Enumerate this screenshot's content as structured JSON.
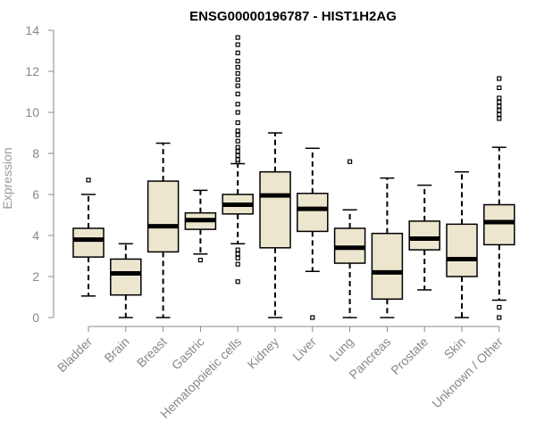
{
  "chart_data": {
    "type": "boxplot",
    "title": "ENSG00000196787 - HIST1H2AG",
    "xlabel": "",
    "ylabel": "Expression",
    "ylim": [
      0,
      14
    ],
    "yticks": [
      0,
      2,
      4,
      6,
      8,
      10,
      12,
      14
    ],
    "grid": false,
    "colors": {
      "box_fill": "#ede6cf",
      "box_stroke": "#000000",
      "axis": "#888888",
      "title": "#000000"
    },
    "categories": [
      "Bladder",
      "Brain",
      "Breast",
      "Gastric",
      "Hematopoietic cells",
      "Kidney",
      "Liver",
      "Lung",
      "Pancreas",
      "Prostate",
      "Skin",
      "Unknown / Other"
    ],
    "boxes": [
      {
        "category": "Bladder",
        "min": 1.05,
        "q1": 2.95,
        "median": 3.8,
        "q3": 4.35,
        "max": 6.0,
        "outliers": [
          6.7
        ]
      },
      {
        "category": "Brain",
        "min": 0.0,
        "q1": 1.1,
        "median": 2.15,
        "q3": 2.85,
        "max": 3.6,
        "outliers": []
      },
      {
        "category": "Breast",
        "min": 0.0,
        "q1": 3.2,
        "median": 4.45,
        "q3": 6.65,
        "max": 8.5,
        "outliers": []
      },
      {
        "category": "Gastric",
        "min": 3.1,
        "q1": 4.3,
        "median": 4.75,
        "q3": 5.1,
        "max": 6.2,
        "outliers": [
          2.8
        ]
      },
      {
        "category": "Hematopoietic cells",
        "min": 3.6,
        "q1": 5.05,
        "median": 5.5,
        "q3": 6.0,
        "max": 7.5,
        "outliers": [
          1.75,
          2.6,
          2.9,
          3.1,
          3.3,
          7.6,
          7.7,
          7.9,
          8.1,
          8.3,
          8.6,
          8.9,
          9.1,
          9.5,
          10.0,
          10.4,
          10.9,
          11.3,
          11.6,
          11.9,
          12.2,
          12.5,
          12.9,
          13.3,
          13.65
        ]
      },
      {
        "category": "Kidney",
        "min": 0.0,
        "q1": 3.4,
        "median": 5.95,
        "q3": 7.1,
        "max": 9.0,
        "outliers": []
      },
      {
        "category": "Liver",
        "min": 2.25,
        "q1": 4.2,
        "median": 5.3,
        "q3": 6.05,
        "max": 8.25,
        "outliers": [
          0.0
        ]
      },
      {
        "category": "Lung",
        "min": 0.0,
        "q1": 2.65,
        "median": 3.4,
        "q3": 4.35,
        "max": 5.25,
        "outliers": [
          7.6
        ]
      },
      {
        "category": "Pancreas",
        "min": 0.0,
        "q1": 0.9,
        "median": 2.2,
        "q3": 4.1,
        "max": 6.8,
        "outliers": []
      },
      {
        "category": "Prostate",
        "min": 1.35,
        "q1": 3.3,
        "median": 3.85,
        "q3": 4.7,
        "max": 6.45,
        "outliers": []
      },
      {
        "category": "Skin",
        "min": 0.0,
        "q1": 2.0,
        "median": 2.85,
        "q3": 4.55,
        "max": 7.1,
        "outliers": []
      },
      {
        "category": "Unknown / Other",
        "min": 0.85,
        "q1": 3.55,
        "median": 4.65,
        "q3": 5.5,
        "max": 8.3,
        "outliers": [
          0.0,
          0.5,
          9.7,
          9.9,
          10.1,
          10.3,
          10.5,
          10.7,
          11.2,
          11.65
        ]
      }
    ]
  }
}
